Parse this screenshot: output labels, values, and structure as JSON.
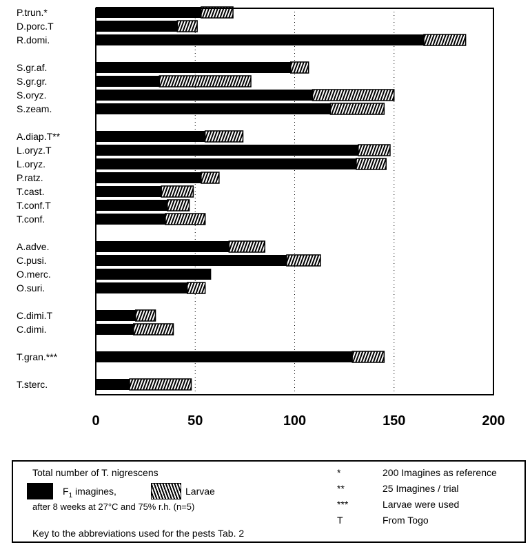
{
  "chart_data": {
    "type": "bar",
    "orientation": "horizontal",
    "stacked": true,
    "groups": [
      [
        "P.trun.*",
        "D.porc.T",
        "R.domi."
      ],
      [
        "S.gr.af.",
        "S.gr.gr.",
        "S.oryz.",
        "S.zeam."
      ],
      [
        "A.diap.T**",
        "L.oryz.T",
        "L.oryz.",
        "P.ratz.",
        "T.cast.",
        "T.conf.T",
        "T.conf."
      ],
      [
        "A.adve.",
        "C.pusi.",
        "O.merc.",
        "O.suri."
      ],
      [
        "C.dimi.T",
        "C.dimi."
      ],
      [
        "T.gran.***"
      ],
      [
        "T.sterc."
      ]
    ],
    "categories": [
      "P.trun.*",
      "D.porc.T",
      "R.domi.",
      "S.gr.af.",
      "S.gr.gr.",
      "S.oryz.",
      "S.zeam.",
      "A.diap.T**",
      "L.oryz.T",
      "L.oryz.",
      "P.ratz.",
      "T.cast.",
      "T.conf.T",
      "T.conf.",
      "A.adve.",
      "C.pusi.",
      "O.merc.",
      "O.suri.",
      "C.dimi.T",
      "C.dimi.",
      "T.gran.***",
      "T.sterc."
    ],
    "series": [
      {
        "name": "F1 imagines",
        "color": "#000000",
        "values": [
          53,
          41,
          165,
          98,
          32,
          109,
          118,
          55,
          132,
          131,
          53,
          33,
          36,
          35,
          67,
          96,
          58,
          46,
          20,
          19,
          129,
          17
        ]
      },
      {
        "name": "Larvae",
        "color": "hatched",
        "values": [
          16,
          10,
          21,
          9,
          46,
          41,
          27,
          19,
          16,
          15,
          9,
          16,
          11,
          20,
          18,
          17,
          0,
          9,
          10,
          20,
          16,
          31
        ]
      }
    ],
    "xlim": [
      0,
      200
    ],
    "xticks": [
      "0",
      "50",
      "100",
      "150",
      "200"
    ],
    "grid": "vertical dotted at 50, 100, 150",
    "title": "",
    "xlabel": "",
    "ylabel": ""
  },
  "legend": {
    "title": "Total number of T. nigrescens",
    "f1_label": "F",
    "f1_sub": "1",
    "f1_rest": " imagines,",
    "larvae_label": "Larvae",
    "conditions": "after 8 weeks at 27°C and 75% r.h. (n=5)",
    "key_note": "Key to the abbreviations used for the pests Tab. 2",
    "footnotes": [
      {
        "symbol": "*",
        "text": "200 Imagines as reference"
      },
      {
        "symbol": "**",
        "text": "25 Imagines / trial"
      },
      {
        "symbol": "***",
        "text": "Larvae were used"
      },
      {
        "symbol": "T",
        "text": "From Togo"
      }
    ]
  }
}
